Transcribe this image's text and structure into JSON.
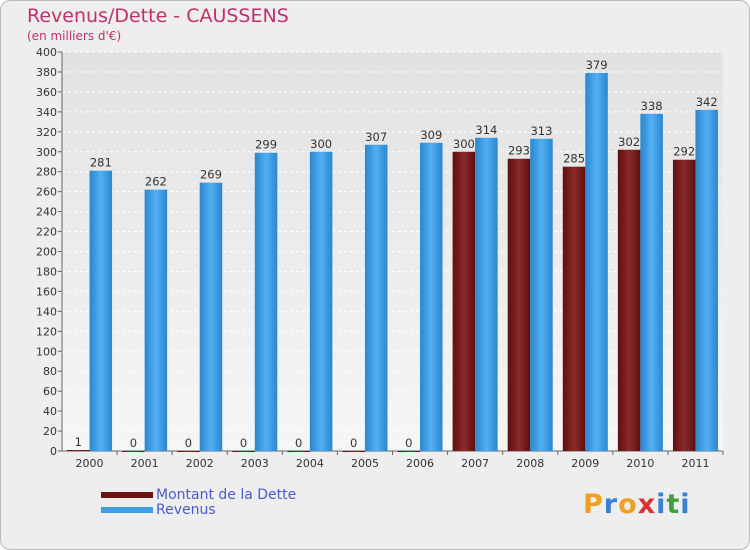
{
  "chart_data": {
    "type": "bar",
    "title": "Revenus/Dette - CAUSSENS",
    "subtitle": "(en milliers d'€)",
    "categories": [
      "2000",
      "2001",
      "2002",
      "2003",
      "2004",
      "2005",
      "2006",
      "2007",
      "2008",
      "2009",
      "2010",
      "2011"
    ],
    "series": [
      {
        "name": "Montant de la Dette",
        "values": [
          1,
          0,
          0,
          0,
          0,
          0,
          0,
          300,
          293,
          285,
          302,
          292
        ],
        "color": "#7a1c1c"
      },
      {
        "name": "Revenus",
        "values": [
          281,
          262,
          269,
          299,
          300,
          307,
          309,
          314,
          313,
          379,
          338,
          342
        ],
        "color": "#3d9ee6"
      }
    ],
    "ylim": [
      0,
      400
    ],
    "yticks": [
      0,
      20,
      40,
      60,
      80,
      100,
      120,
      140,
      160,
      180,
      200,
      220,
      240,
      260,
      280,
      300,
      320,
      340,
      360,
      380,
      400
    ],
    "grid": true,
    "legend_position": "bottom-left"
  },
  "branding": {
    "logo_letters": [
      "P",
      "r",
      "o",
      "x",
      "i",
      "t",
      "i"
    ],
    "logo_colors": [
      "#f0a020",
      "#3a7fd0",
      "#f0a020",
      "#e03030",
      "#3a7fd0",
      "#40a040",
      "#3a7fd0"
    ]
  }
}
